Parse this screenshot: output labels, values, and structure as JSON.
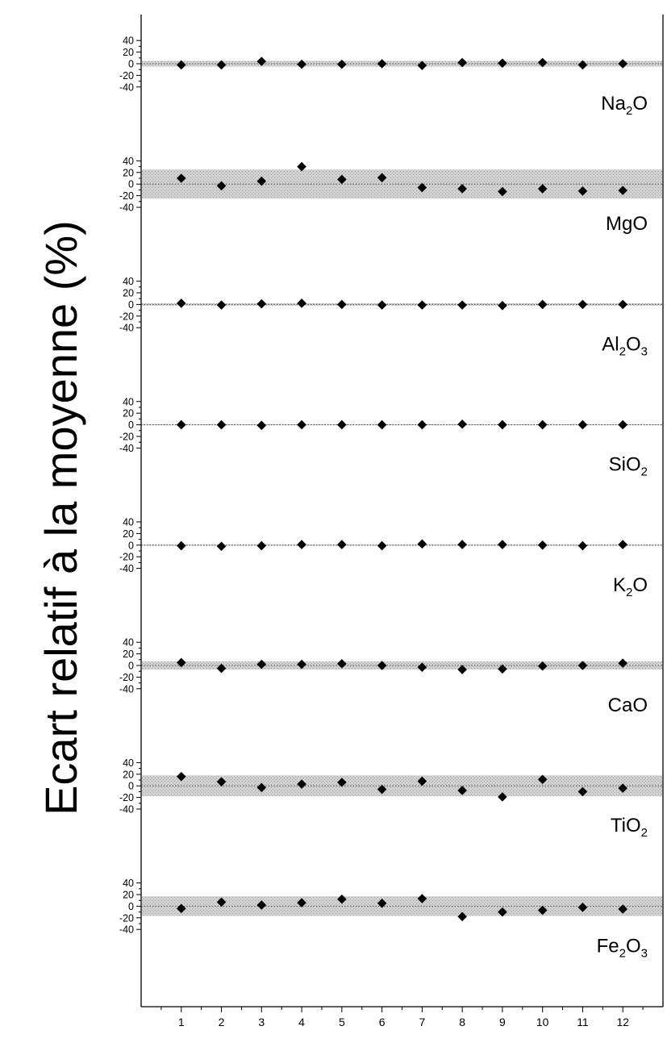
{
  "chart_data": {
    "type": "scatter",
    "ylabel": "Ecart relatif à la moyenne (%)",
    "x": [
      1,
      2,
      3,
      4,
      5,
      6,
      7,
      8,
      9,
      10,
      11,
      12
    ],
    "x_ticks": [
      "1",
      "2",
      "3",
      "4",
      "5",
      "6",
      "7",
      "8",
      "9",
      "10",
      "11",
      "12"
    ],
    "xlim": [
      0,
      13
    ],
    "panel_y_ticks": [
      "40",
      "20",
      "0",
      "-20",
      "-40"
    ],
    "panel_ylim": [
      -40,
      40
    ],
    "grid": false,
    "marker": "diamond",
    "marker_color": "#000000",
    "band_color": "#c4c4c4",
    "panels": [
      {
        "name": "Na2O",
        "label_main": "Na",
        "label_sub1": "2",
        "label_mid": "O",
        "label_sub2": "",
        "band": 5,
        "values": [
          -2,
          -2,
          4,
          -1,
          -1,
          0,
          -3,
          2,
          1,
          2,
          -2,
          0
        ]
      },
      {
        "name": "MgO",
        "label_main": "MgO",
        "label_sub1": "",
        "label_mid": "",
        "label_sub2": "",
        "band": 25,
        "values": [
          10,
          -3,
          5,
          30,
          8,
          11,
          -6,
          -8,
          -13,
          -8,
          -12,
          -11
        ]
      },
      {
        "name": "Al2O3",
        "label_main": "Al",
        "label_sub1": "2",
        "label_mid": "O",
        "label_sub2": "3",
        "band": 2,
        "values": [
          2,
          -1,
          1,
          2,
          0,
          -1,
          -1,
          -1,
          -2,
          0,
          0,
          0
        ]
      },
      {
        "name": "SiO2",
        "label_main": "SiO",
        "label_sub1": "2",
        "label_mid": "",
        "label_sub2": "",
        "band": 1,
        "values": [
          0,
          0,
          -1,
          0,
          0,
          0,
          0,
          1,
          0,
          0,
          0,
          0
        ]
      },
      {
        "name": "K2O",
        "label_main": "K",
        "label_sub1": "2",
        "label_mid": "O",
        "label_sub2": "",
        "band": 1,
        "values": [
          -1,
          -2,
          -1,
          1,
          1,
          -1,
          2,
          1,
          1,
          0,
          -1,
          1
        ]
      },
      {
        "name": "CaO",
        "label_main": "CaO",
        "label_sub1": "",
        "label_mid": "",
        "label_sub2": "",
        "band": 7,
        "values": [
          5,
          -5,
          2,
          2,
          3,
          0,
          -3,
          -7,
          -6,
          -1,
          0,
          4
        ]
      },
      {
        "name": "TiO2",
        "label_main": "TiO",
        "label_sub1": "2",
        "label_mid": "",
        "label_sub2": "",
        "band": 18,
        "values": [
          16,
          7,
          -3,
          3,
          6,
          -6,
          8,
          -8,
          -19,
          11,
          -10,
          -4
        ]
      },
      {
        "name": "Fe2O3",
        "label_main": "Fe",
        "label_sub1": "2",
        "label_mid": "O",
        "label_sub2": "3",
        "band": 17,
        "values": [
          -4,
          7,
          2,
          6,
          12,
          5,
          13,
          -18,
          -10,
          -7,
          -2,
          -5
        ]
      }
    ]
  }
}
